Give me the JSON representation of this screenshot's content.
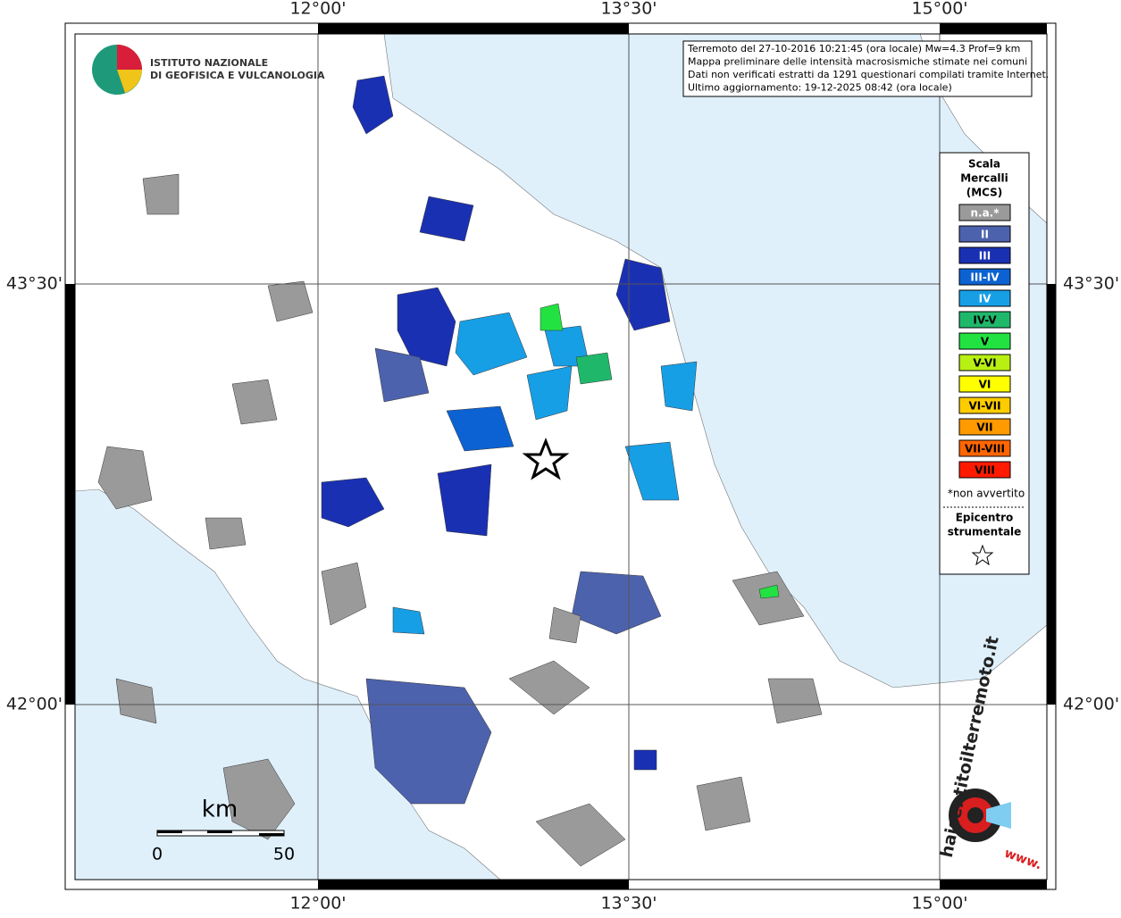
{
  "logo": {
    "lines": [
      "ISTITUTO NAZIONALE",
      "DI GEOFISICA E VULCANOLOGIA"
    ]
  },
  "info": [
    "Terremoto del 27-10-2016 10:21:45 (ora locale) Mw=4.3 Prof=9 km",
    "Mappa preliminare delle intensità macrosismiche stimate nei comuni",
    "Dati non verificati estratti da 1291 questionari compilati tramite Internet.",
    "Ultimo aggiornamento: 19-12-2025 08:42 (ora locale)"
  ],
  "axes": {
    "top": [
      "12°00'",
      "13°30'",
      "15°00'"
    ],
    "bottom": [
      "12°00'",
      "13°30'",
      "15°00'"
    ],
    "left": [
      "43°30'",
      "42°00'"
    ],
    "right": [
      "43°30'",
      "42°00'"
    ]
  },
  "legend": {
    "title": [
      "Scala",
      "Mercalli",
      "(MCS)"
    ],
    "items": [
      {
        "label": "n.a.*",
        "color": "#9a9a9a",
        "text_color": "#ffffff"
      },
      {
        "label": "II",
        "color": "#4d62ad",
        "text_color": "#ffffff"
      },
      {
        "label": "III",
        "color": "#1a30b3",
        "text_color": "#ffffff"
      },
      {
        "label": "III-IV",
        "color": "#0c62d2",
        "text_color": "#ffffff"
      },
      {
        "label": "IV",
        "color": "#179fe6",
        "text_color": "#ffffff"
      },
      {
        "label": "IV-V",
        "color": "#1fb86b",
        "text_color": "#000000"
      },
      {
        "label": "V",
        "color": "#22e242",
        "text_color": "#000000"
      },
      {
        "label": "V-VI",
        "color": "#b8f013",
        "text_color": "#000000"
      },
      {
        "label": "VI",
        "color": "#ffff00",
        "text_color": "#000000"
      },
      {
        "label": "VI-VII",
        "color": "#ffcc00",
        "text_color": "#000000"
      },
      {
        "label": "VII",
        "color": "#ff9a00",
        "text_color": "#000000"
      },
      {
        "label": "VII-VIII",
        "color": "#ff6600",
        "text_color": "#000000"
      },
      {
        "label": "VIII",
        "color": "#ff1a00",
        "text_color": "#000000"
      }
    ],
    "note": "*non avvertito",
    "epicentre": [
      "Epicentro",
      "strumentale"
    ]
  },
  "scale_bar": {
    "unit": "km",
    "labels": [
      "0",
      "50"
    ]
  },
  "watermark": {
    "text": "haisentitoilterremoto.it",
    "www": "www."
  }
}
